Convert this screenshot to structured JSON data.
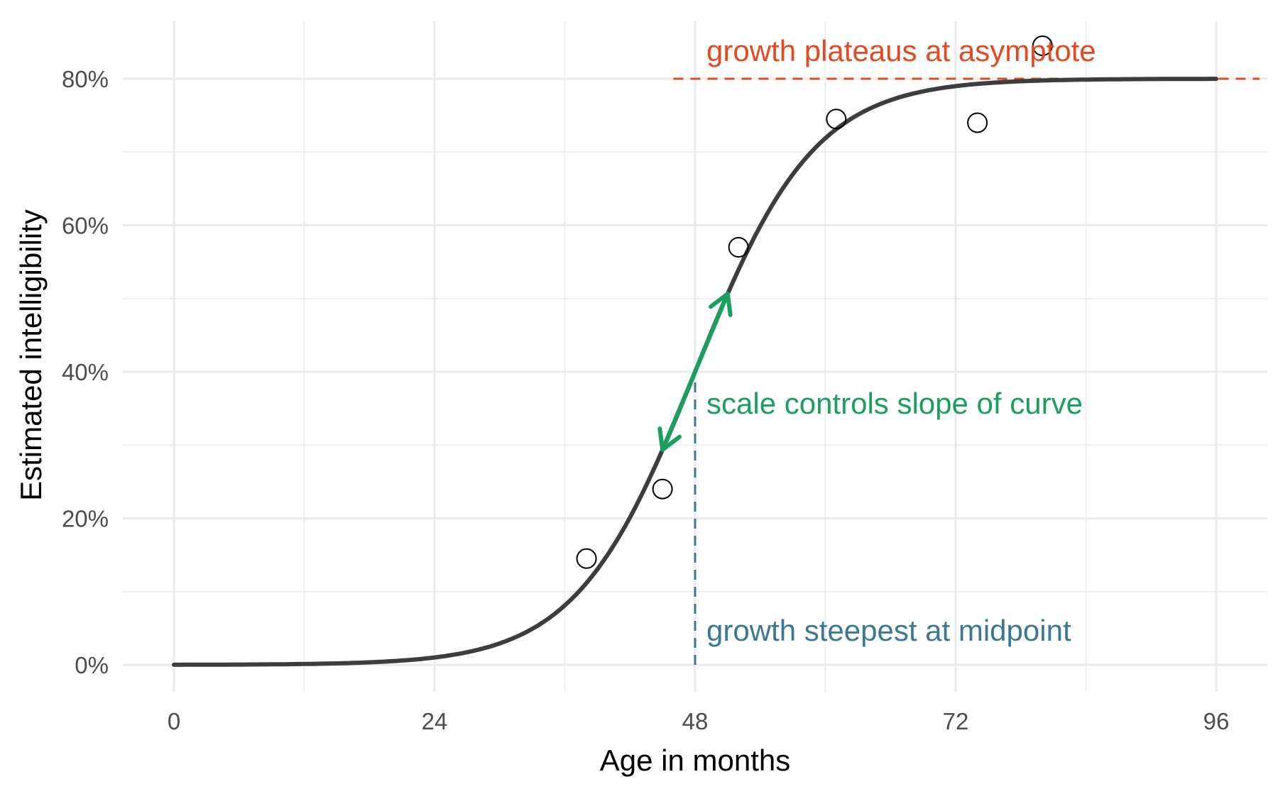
{
  "chart_data": {
    "type": "line",
    "xlabel": "Age in months",
    "ylabel": "Estimated intelligibility",
    "xlim": [
      -4,
      100
    ],
    "ylim": [
      -0.04,
      0.85
    ],
    "x_ticks": [
      0,
      24,
      48,
      72,
      96
    ],
    "x_tick_labels": [
      "0",
      "24",
      "48",
      "72",
      "96"
    ],
    "y_ticks": [
      0,
      0.2,
      0.4,
      0.6,
      0.8
    ],
    "y_tick_labels": [
      "0%",
      "20%",
      "40%",
      "60%",
      "80%"
    ],
    "grid": true,
    "curve": {
      "model": "logistic",
      "asymptote": 0.8,
      "midpoint": 48,
      "scale": 5.5,
      "color": "#3d3d3f"
    },
    "points": [
      {
        "x": 38,
        "y": 0.145
      },
      {
        "x": 45,
        "y": 0.24
      },
      {
        "x": 52,
        "y": 0.57
      },
      {
        "x": 61,
        "y": 0.745
      },
      {
        "x": 74,
        "y": 0.74
      },
      {
        "x": 80,
        "y": 0.845
      }
    ],
    "annotations": {
      "asymptote": {
        "text": "growth plateaus at asymptote",
        "color": "#e34a21",
        "y": 0.8,
        "x_from": 46,
        "x_to": 100
      },
      "scale": {
        "text": "scale controls slope of curve",
        "color": "#1b9e5e",
        "x_from": 45,
        "x_to": 51
      },
      "midpoint": {
        "text": "growth steepest at midpoint",
        "color": "#3a7896",
        "x": 48,
        "y_from": 0,
        "y_to": 0.4
      }
    }
  }
}
